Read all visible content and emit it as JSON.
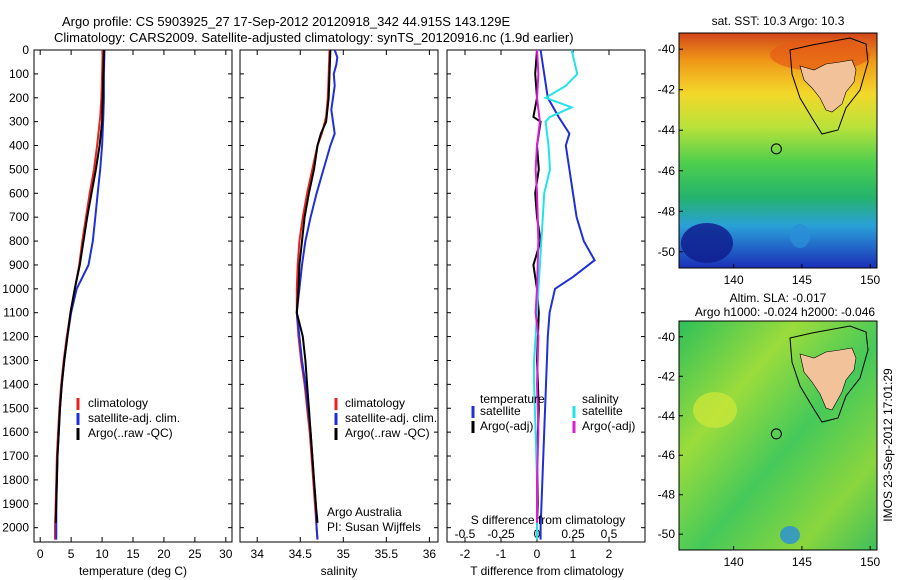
{
  "header": {
    "line1": "Argo profile: CS 5903925_27 17-Sep-2012 20120918_342 44.915S 143.129E",
    "line2": "Climatology: CARS2009. Satellite-adjusted climatology: synTS_20120916.nc (1.9d earlier)"
  },
  "side_note": "IMOS 23-Sep-2012 17:01:29",
  "chart_data": [
    {
      "id": "temperature",
      "type": "line",
      "xlabel": "temperature (deg C)",
      "ylabel": "",
      "xlim": [
        -1,
        31
      ],
      "ylim": [
        2060,
        0
      ],
      "xticks": [
        "0",
        "5",
        "10",
        "15",
        "20",
        "25",
        "30"
      ],
      "yticks": [
        "0",
        "100",
        "200",
        "300",
        "400",
        "500",
        "600",
        "700",
        "800",
        "900",
        "1000",
        "1100",
        "1200",
        "1300",
        "1400",
        "1500",
        "1600",
        "1700",
        "1800",
        "1900",
        "2000"
      ],
      "legend": [
        "climatology",
        "satellite-adj. clim.",
        "Argo(..raw -QC)"
      ],
      "legend_position": "lower-right",
      "series": [
        {
          "name": "climatology",
          "color": "#e8221d",
          "points": [
            [
              10.1,
              0
            ],
            [
              10.0,
              100
            ],
            [
              9.9,
              200
            ],
            [
              9.7,
              280
            ],
            [
              9.2,
              400
            ],
            [
              8.7,
              500
            ],
            [
              8.0,
              600
            ],
            [
              7.4,
              700
            ],
            [
              6.8,
              800
            ],
            [
              6.3,
              900
            ],
            [
              5.6,
              1000
            ],
            [
              4.9,
              1100
            ],
            [
              4.3,
              1200
            ],
            [
              3.8,
              1300
            ],
            [
              3.4,
              1400
            ],
            [
              3.1,
              1500
            ],
            [
              2.9,
              1600
            ],
            [
              2.7,
              1700
            ],
            [
              2.6,
              1800
            ],
            [
              2.5,
              1900
            ],
            [
              2.4,
              2000
            ],
            [
              2.4,
              2050
            ]
          ]
        },
        {
          "name": "satellite-adj. clim.",
          "color": "#1f2fd8",
          "points": [
            [
              10.4,
              0
            ],
            [
              10.3,
              100
            ],
            [
              10.3,
              200
            ],
            [
              10.2,
              280
            ],
            [
              10.0,
              400
            ],
            [
              9.7,
              500
            ],
            [
              9.3,
              600
            ],
            [
              8.9,
              700
            ],
            [
              8.5,
              800
            ],
            [
              7.8,
              900
            ],
            [
              5.9,
              1000
            ],
            [
              5.0,
              1100
            ],
            [
              4.4,
              1200
            ],
            [
              3.9,
              1300
            ],
            [
              3.5,
              1400
            ],
            [
              3.2,
              1500
            ],
            [
              3.0,
              1600
            ],
            [
              2.8,
              1700
            ],
            [
              2.7,
              1800
            ],
            [
              2.6,
              1900
            ],
            [
              2.6,
              2000
            ],
            [
              2.6,
              2050
            ]
          ]
        },
        {
          "name": "Argo(..raw -QC)",
          "color": "#000000",
          "points": [
            [
              10.3,
              0
            ],
            [
              10.2,
              100
            ],
            [
              10.1,
              200
            ],
            [
              10.0,
              300
            ],
            [
              9.6,
              400
            ],
            [
              9.0,
              500
            ],
            [
              8.3,
              600
            ],
            [
              7.6,
              700
            ],
            [
              7.0,
              800
            ],
            [
              6.4,
              900
            ],
            [
              5.6,
              1000
            ],
            [
              4.9,
              1100
            ],
            [
              4.4,
              1200
            ],
            [
              3.9,
              1300
            ],
            [
              3.5,
              1400
            ],
            [
              3.2,
              1500
            ],
            [
              3.0,
              1600
            ],
            [
              2.8,
              1700
            ],
            [
              2.7,
              1800
            ],
            [
              2.6,
              1900
            ],
            [
              2.5,
              1980
            ]
          ]
        }
      ]
    },
    {
      "id": "salinity",
      "type": "line",
      "xlabel": "salinity",
      "ylabel": "",
      "xlim": [
        33.8,
        36.1
      ],
      "ylim": [
        2060,
        0
      ],
      "xticks": [
        "34",
        "34.5",
        "35",
        "35.5",
        "36"
      ],
      "legend": [
        "climatology",
        "satellite-adj. clim.",
        "Argo(..raw -QC)"
      ],
      "legend_position": "lower-right",
      "annotation": [
        "Argo Australia",
        "PI: Susan Wijffels"
      ],
      "series": [
        {
          "name": "climatology",
          "color": "#e8221d",
          "points": [
            [
              34.84,
              0
            ],
            [
              34.83,
              100
            ],
            [
              34.82,
              200
            ],
            [
              34.8,
              280
            ],
            [
              34.75,
              350
            ],
            [
              34.7,
              400
            ],
            [
              34.64,
              500
            ],
            [
              34.58,
              600
            ],
            [
              34.53,
              700
            ],
            [
              34.49,
              800
            ],
            [
              34.47,
              900
            ],
            [
              34.46,
              1000
            ],
            [
              34.46,
              1100
            ],
            [
              34.48,
              1200
            ],
            [
              34.51,
              1300
            ],
            [
              34.55,
              1400
            ],
            [
              34.58,
              1500
            ],
            [
              34.61,
              1600
            ],
            [
              34.63,
              1700
            ],
            [
              34.65,
              1800
            ],
            [
              34.67,
              1900
            ],
            [
              34.69,
              2000
            ],
            [
              34.7,
              2050
            ]
          ]
        },
        {
          "name": "satellite-adj. clim.",
          "color": "#1f2fd8",
          "points": [
            [
              34.9,
              0
            ],
            [
              34.93,
              30
            ],
            [
              34.92,
              60
            ],
            [
              34.89,
              100
            ],
            [
              34.9,
              150
            ],
            [
              34.88,
              200
            ],
            [
              34.86,
              250
            ],
            [
              34.88,
              300
            ],
            [
              34.9,
              350
            ],
            [
              34.85,
              400
            ],
            [
              34.77,
              500
            ],
            [
              34.69,
              600
            ],
            [
              34.62,
              700
            ],
            [
              34.56,
              800
            ],
            [
              34.52,
              900
            ],
            [
              34.49,
              1000
            ],
            [
              34.46,
              1100
            ],
            [
              34.49,
              1200
            ],
            [
              34.52,
              1300
            ],
            [
              34.56,
              1400
            ],
            [
              34.59,
              1500
            ],
            [
              34.62,
              1600
            ],
            [
              34.64,
              1700
            ],
            [
              34.66,
              1800
            ],
            [
              34.68,
              1900
            ],
            [
              34.69,
              2000
            ],
            [
              34.7,
              2050
            ]
          ]
        },
        {
          "name": "Argo(..raw -QC)",
          "color": "#000000",
          "points": [
            [
              34.85,
              0
            ],
            [
              34.84,
              100
            ],
            [
              34.83,
              200
            ],
            [
              34.8,
              300
            ],
            [
              34.74,
              350
            ],
            [
              34.7,
              400
            ],
            [
              34.66,
              500
            ],
            [
              34.6,
              600
            ],
            [
              34.55,
              700
            ],
            [
              34.52,
              800
            ],
            [
              34.49,
              900
            ],
            [
              34.48,
              1000
            ],
            [
              34.46,
              1100
            ],
            [
              34.53,
              1200
            ],
            [
              34.56,
              1300
            ],
            [
              34.58,
              1400
            ],
            [
              34.6,
              1500
            ],
            [
              34.62,
              1600
            ],
            [
              34.64,
              1700
            ],
            [
              34.66,
              1800
            ],
            [
              34.68,
              1900
            ],
            [
              34.7,
              1980
            ]
          ]
        }
      ]
    },
    {
      "id": "difference",
      "type": "line",
      "xlabel": "T difference from climatology",
      "title_inside": "S difference from climatology",
      "xlim": [
        -2.5,
        3.0
      ],
      "ylim": [
        2060,
        0
      ],
      "xticks": [
        "-2",
        "-1",
        "0",
        "1",
        "2"
      ],
      "top_xticks": [
        "-0.5",
        "-0.25",
        "0",
        "0.25",
        "0.5"
      ],
      "top_xlim": [
        -0.625,
        0.75
      ],
      "legend": [
        "temperature",
        "satellite",
        "Argo(-adj)",
        "salinity",
        "satellite",
        "Argo(-adj)"
      ],
      "legend_position": "lower-center",
      "series": [
        {
          "name": "satellite",
          "group": "temperature",
          "color": "#1f2fd8",
          "points": [
            [
              0.1,
              0
            ],
            [
              0.2,
              100
            ],
            [
              0.3,
              200
            ],
            [
              0.6,
              280
            ],
            [
              0.9,
              350
            ],
            [
              0.8,
              400
            ],
            [
              0.9,
              500
            ],
            [
              1.0,
              600
            ],
            [
              1.1,
              700
            ],
            [
              1.3,
              800
            ],
            [
              1.6,
              880
            ],
            [
              1.0,
              950
            ],
            [
              0.5,
              1000
            ],
            [
              0.35,
              1100
            ],
            [
              0.3,
              1200
            ],
            [
              0.25,
              1400
            ],
            [
              0.2,
              1600
            ],
            [
              0.15,
              1800
            ],
            [
              0.1,
              2000
            ],
            [
              0.1,
              2050
            ]
          ]
        },
        {
          "name": "Argo(-adj)",
          "group": "temperature",
          "color": "#000000",
          "points": [
            [
              0.0,
              0
            ],
            [
              -0.05,
              100
            ],
            [
              0.0,
              200
            ],
            [
              -0.1,
              280
            ],
            [
              0.1,
              300
            ],
            [
              0.0,
              400
            ],
            [
              0.05,
              500
            ],
            [
              -0.05,
              600
            ],
            [
              0.0,
              700
            ],
            [
              0.1,
              800
            ],
            [
              -0.1,
              900
            ],
            [
              0.0,
              1000
            ],
            [
              0.05,
              1100
            ],
            [
              0.0,
              1300
            ],
            [
              0.05,
              1500
            ],
            [
              0.0,
              1700
            ],
            [
              0.02,
              1900
            ],
            [
              0.0,
              1980
            ]
          ]
        },
        {
          "name": "satellite",
          "group": "salinity",
          "color": "#22e3e8",
          "points": [
            [
              0.24,
              0
            ],
            [
              0.28,
              100
            ],
            [
              0.2,
              150
            ],
            [
              0.06,
              200
            ],
            [
              0.24,
              240
            ],
            [
              0.09,
              280
            ],
            [
              0.06,
              300
            ],
            [
              0.08,
              400
            ],
            [
              0.09,
              500
            ],
            [
              0.05,
              600
            ],
            [
              0.04,
              700
            ],
            [
              0.03,
              800
            ],
            [
              0.02,
              900
            ],
            [
              0.01,
              1000
            ],
            [
              0.0,
              1100
            ],
            [
              -0.01,
              1200
            ],
            [
              -0.02,
              1300
            ],
            [
              -0.02,
              1400
            ],
            [
              -0.01,
              1600
            ],
            [
              0.0,
              1800
            ],
            [
              0.0,
              2000
            ],
            [
              0.0,
              2050
            ]
          ]
        },
        {
          "name": "Argo(-adj)",
          "group": "salinity",
          "color": "#d81fd6",
          "points": [
            [
              0.0,
              0
            ],
            [
              0.01,
              100
            ],
            [
              0.0,
              200
            ],
            [
              0.02,
              300
            ],
            [
              0.0,
              400
            ],
            [
              -0.01,
              500
            ],
            [
              0.0,
              600
            ],
            [
              0.01,
              800
            ],
            [
              0.0,
              1000
            ],
            [
              -0.01,
              1100
            ],
            [
              0.01,
              1200
            ],
            [
              0.0,
              1400
            ],
            [
              0.01,
              1600
            ],
            [
              0.0,
              1800
            ],
            [
              0.0,
              1980
            ]
          ]
        }
      ]
    },
    {
      "id": "sst-map",
      "type": "heatmap",
      "title": "sat. SST: 10.3 Argo: 10.3",
      "xlim": [
        136,
        150.5
      ],
      "ylim": [
        -50.8,
        -39.2
      ],
      "xticks": [
        "140",
        "145",
        "150"
      ],
      "yticks": [
        "-40",
        "-42",
        "-44",
        "-46",
        "-48",
        "-50"
      ],
      "marker": {
        "lon": 143.13,
        "lat": -44.92
      }
    },
    {
      "id": "sla-map",
      "type": "heatmap",
      "title": "Altim. SLA: -0.017",
      "subtitle": "Argo h1000: -0.024 h2000: -0.046",
      "xlim": [
        136,
        150.5
      ],
      "ylim": [
        -50.8,
        -39.2
      ],
      "xticks": [
        "140",
        "145",
        "150"
      ],
      "yticks": [
        "-40",
        "-42",
        "-44",
        "-46",
        "-48",
        "-50"
      ],
      "marker": {
        "lon": 143.13,
        "lat": -44.92
      }
    }
  ],
  "colors": {
    "red": "#e8221d",
    "blue": "#1f2fd8",
    "black": "#000000",
    "cyan": "#22e3e8",
    "magenta": "#d81fd6",
    "land": "#f2c39a"
  }
}
